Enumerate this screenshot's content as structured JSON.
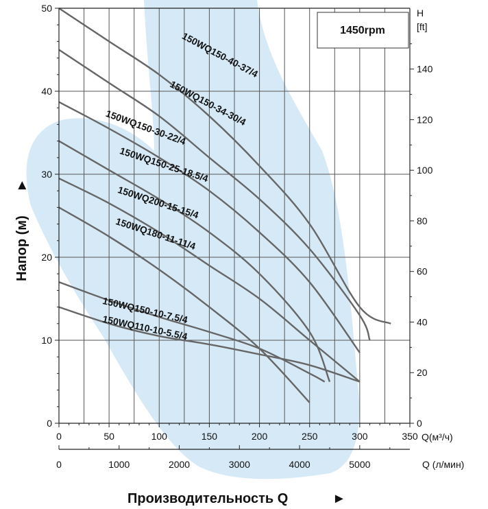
{
  "chart_data": {
    "type": "line",
    "title": "",
    "speed_label": "1450rpm",
    "ylabel": "Напор (м)",
    "ylabel_arrow": "►",
    "xlabel": "Производительность Q",
    "xlabel_arrow": "►",
    "x_unit_primary": "Q(м³/ч)",
    "x_unit_secondary": "Q (л/мин)",
    "y_unit_right_1": "H",
    "y_unit_right_2": "[ft]",
    "xlim": [
      0,
      350
    ],
    "ylim": [
      0,
      50
    ],
    "x_ticks": [
      "0",
      "50",
      "100",
      "150",
      "200",
      "250",
      "300",
      "350"
    ],
    "y_ticks": [
      "0",
      "10",
      "20",
      "30",
      "40",
      "50"
    ],
    "x2_ticks": [
      {
        "value": 0,
        "label": "0"
      },
      {
        "value": 1000,
        "label": "1000"
      },
      {
        "value": 2000,
        "label": "2000"
      },
      {
        "value": 3000,
        "label": "3000"
      },
      {
        "value": 4000,
        "label": "4000"
      },
      {
        "value": 5000,
        "label": "5000"
      }
    ],
    "y2_ticks": [
      {
        "value": 0,
        "label": "0"
      },
      {
        "value": 20,
        "label": "20"
      },
      {
        "value": 40,
        "label": "40"
      },
      {
        "value": 60,
        "label": "60"
      },
      {
        "value": 80,
        "label": "80"
      },
      {
        "value": 100,
        "label": "100"
      },
      {
        "value": 120,
        "label": "120"
      },
      {
        "value": 140,
        "label": "140"
      }
    ],
    "grid": true,
    "series": [
      {
        "name": "150WQ150-40-37/4",
        "x": [
          0,
          50,
          100,
          150,
          200,
          250,
          300,
          331
        ],
        "y": [
          50,
          46,
          42,
          37,
          31,
          24,
          14,
          12
        ]
      },
      {
        "name": "150WQ150-34-30/4",
        "x": [
          0,
          50,
          100,
          150,
          200,
          250,
          300,
          310
        ],
        "y": [
          45,
          41,
          37,
          32,
          27,
          21,
          13,
          10
        ]
      },
      {
        "name": "150WQ150-30-22/4",
        "x": [
          0,
          50,
          100,
          150,
          200,
          250,
          300
        ],
        "y": [
          38.7,
          35.5,
          32,
          28,
          23,
          17,
          8.5
        ]
      },
      {
        "name": "150WQ150-25-18.5/4",
        "x": [
          0,
          50,
          100,
          150,
          200,
          250,
          270
        ],
        "y": [
          34,
          30.5,
          27,
          23,
          18,
          11,
          5
        ]
      },
      {
        "name": "150WQ200-15-15/4",
        "x": [
          0,
          50,
          100,
          150,
          200,
          250,
          300
        ],
        "y": [
          29.5,
          26.5,
          23,
          19,
          15,
          10,
          5
        ]
      },
      {
        "name": "150WQ180-11-11/4",
        "x": [
          0,
          50,
          100,
          150,
          200,
          250
        ],
        "y": [
          26,
          22.5,
          18.5,
          14,
          9,
          2.5
        ]
      },
      {
        "name": "150WQ150-10-7.5/4",
        "x": [
          0,
          50,
          100,
          150,
          200,
          250,
          265
        ],
        "y": [
          17,
          14.8,
          12.8,
          11,
          9,
          6,
          5
        ]
      },
      {
        "name": "150WQ110-10-5.5/4",
        "x": [
          0,
          50,
          100,
          150,
          200,
          250,
          300
        ],
        "y": [
          14,
          12,
          10.5,
          9.5,
          8.3,
          7,
          5
        ]
      }
    ],
    "label_positions_note": ""
  }
}
